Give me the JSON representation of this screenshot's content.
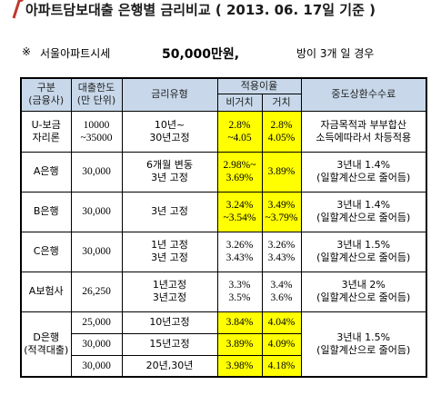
{
  "header": {
    "title": "아파트담보대출 은행별 금리비교 ( 2013. 06. 17일 기준 )",
    "note_mark": "※",
    "city_price_label": "서울아파트시세",
    "price": "50,000만원,",
    "room_condition": "방이 3개 일 경우"
  },
  "table": {
    "headers": {
      "category": "구분\n(금융사)",
      "limit": "대출한도\n(만 단위)",
      "rate_type": "금리유형",
      "applied_rate": "적용이율",
      "non_deferred": "비거치",
      "deferred": "거치",
      "early_fee": "중도상환수수료"
    },
    "rows": [
      {
        "name": "U-보금\n자리론",
        "limit": "10000\n~35000",
        "type": "10년~\n30년고정",
        "non_deferred": "2.8%\n~4.05",
        "deferred": "2.8%\n4.05%",
        "fee": "자금목적과 부부합산\n소득에따라서 차등적용"
      },
      {
        "name": "A은행",
        "limit": "30,000",
        "type": "6개월 변동\n3년 고정",
        "non_deferred": "2.98%~\n3.69%",
        "deferred": "3.89%",
        "fee": "3년내 1.4%\n(일할계산으로 줄어듬)"
      },
      {
        "name": "B은행",
        "limit": "30,000",
        "type": "3년 고정",
        "non_deferred": "3.24%\n~3.54%",
        "deferred": "3.49%\n~3.79%",
        "fee": "3년내 1.4%\n(일할계산으로 줄어듬)"
      },
      {
        "name": "C은행",
        "limit": "30,000",
        "type": "1년 고정\n3년 고정",
        "non_deferred": "3.26%\n3.43%",
        "deferred": "3.26%\n3.43%",
        "fee": "3년내 1.5%\n(일할계산으로 줄어듬)"
      },
      {
        "name": "A보험사",
        "limit": "26,250",
        "type": "1년고정\n3년고정",
        "non_deferred": "3.3%\n3.5%",
        "deferred": "3.4%\n3.6%",
        "fee": "3년내 2%\n(일할계산으로 줄어듬)"
      }
    ],
    "d_bank": {
      "name": "D은행\n(적격대출)",
      "fee": "3년내 1.5%\n(일할계산으로 줄어듬)",
      "sub_rows": [
        {
          "limit": "25,000",
          "type": "10년고정",
          "non_deferred": "3.84%",
          "deferred": "4.04%"
        },
        {
          "limit": "30,000",
          "type": "15년고정",
          "non_deferred": "3.89%",
          "deferred": "4.09%"
        },
        {
          "limit": "30,000",
          "type": "20년,30년",
          "non_deferred": "3.98%",
          "deferred": "4.18%"
        }
      ]
    }
  }
}
